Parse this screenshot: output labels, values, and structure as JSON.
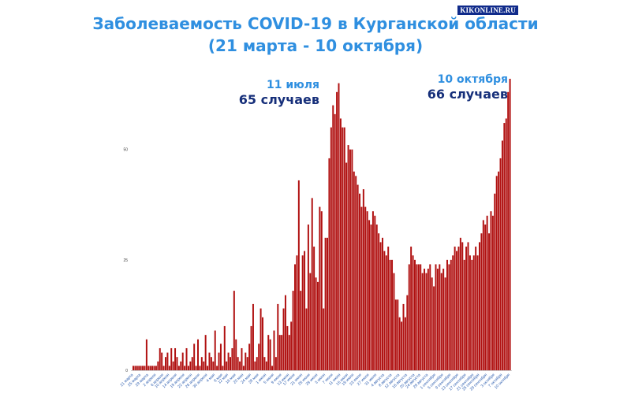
{
  "title_line1": "Заболеваемость COVID-19 в Курганской области",
  "title_line2": "(21 марта - 10 октября)",
  "watermark": "KIKONLINE.RU",
  "annotations": [
    {
      "date": "11 июля",
      "cases": "65 случаев"
    },
    {
      "date": "10 октября",
      "cases": "66 случаев"
    }
  ],
  "colors": {
    "bar": "#b01010",
    "title": "#2f8fe0",
    "annotation_dark": "#162f7a"
  },
  "chart_data": {
    "type": "bar",
    "title": "Заболеваемость COVID-19 в Курганской области",
    "subtitle": "(21 марта - 10 октября)",
    "xlabel": "",
    "ylabel": "",
    "ylim": [
      0,
      66
    ],
    "yticks": [
      0,
      25,
      50
    ],
    "grid": false,
    "x_tick_labels": [
      "21 марта",
      "25 марта",
      "29 марта",
      "2 апреля",
      "6 апреля",
      "10 апреля",
      "14 апреля",
      "18 апреля",
      "22 апреля",
      "26 апреля",
      "30 апреля",
      "4 мая",
      "8 мая",
      "12 мая",
      "16 мая",
      "20 мая",
      "24 мая",
      "28 мая",
      "1 июня",
      "5 июня",
      "9 июня",
      "13 июня",
      "17 июня",
      "21 июня",
      "25 июня",
      "29 июня",
      "3 июля",
      "7 июля",
      "11 июля",
      "15 июля",
      "19 июля",
      "23 июля",
      "27 июля",
      "31 июля",
      "4 августа",
      "8 августа",
      "12 августа",
      "16 августа",
      "20 августа",
      "24 августа",
      "28 августа",
      "1 сентября",
      "5 сентября",
      "9 сентября",
      "13 сентября",
      "17 сентября",
      "21 сентября",
      "25 сентября",
      "29 сентября",
      "3 октября",
      "7 октября",
      "10 октября"
    ],
    "values": [
      1,
      1,
      1,
      1,
      1,
      1,
      1,
      7,
      1,
      1,
      1,
      1,
      1,
      2,
      5,
      4,
      1,
      3,
      4,
      1,
      5,
      2,
      5,
      3,
      1,
      2,
      4,
      1,
      5,
      1,
      2,
      3,
      6,
      1,
      7,
      1,
      3,
      2,
      8,
      1,
      4,
      3,
      2,
      9,
      1,
      4,
      6,
      1,
      10,
      2,
      4,
      3,
      5,
      18,
      7,
      3,
      2,
      5,
      1,
      4,
      3,
      6,
      10,
      15,
      2,
      3,
      6,
      14,
      12,
      3,
      2,
      8,
      7,
      1,
      9,
      3,
      15,
      8,
      8,
      14,
      17,
      10,
      8,
      11,
      18,
      24,
      26,
      43,
      18,
      26,
      27,
      14,
      33,
      22,
      39,
      28,
      21,
      20,
      37,
      36,
      14,
      30,
      30,
      48,
      55,
      60,
      58,
      63,
      65,
      57,
      55,
      55,
      47,
      51,
      50,
      50,
      45,
      44,
      42,
      40,
      37,
      41,
      37,
      36,
      34,
      33,
      36,
      35,
      33,
      31,
      29,
      30,
      27,
      26,
      28,
      25,
      25,
      22,
      16,
      16,
      12,
      11,
      15,
      12,
      17,
      24,
      28,
      26,
      25,
      24,
      24,
      24,
      22,
      23,
      22,
      23,
      24,
      21,
      19,
      24,
      23,
      24,
      22,
      23,
      21,
      25,
      24,
      25,
      26,
      28,
      27,
      28,
      30,
      29,
      25,
      28,
      29,
      26,
      25,
      26,
      28,
      26,
      29,
      31,
      34,
      33,
      35,
      31,
      36,
      35,
      40,
      44,
      45,
      48,
      52,
      56,
      57,
      63,
      66
    ]
  }
}
